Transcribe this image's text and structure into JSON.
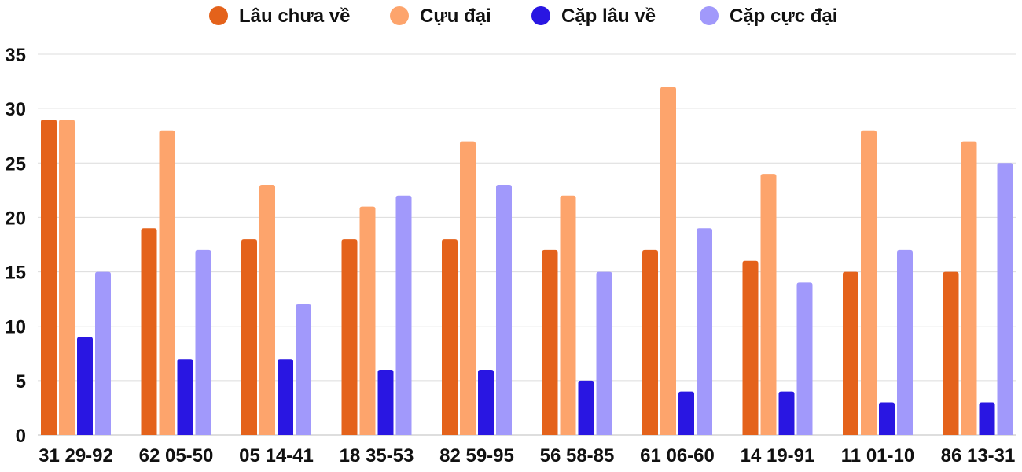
{
  "chart_data": {
    "type": "bar",
    "categories": [
      "31 29-92",
      "62 05-50",
      "05 14-41",
      "18 35-53",
      "82 59-95",
      "56 58-85",
      "61 06-60",
      "14 19-91",
      "11 01-10",
      "86 13-31"
    ],
    "series": [
      {
        "name": "Lâu chưa về",
        "color": "#e4621b",
        "values": [
          29,
          19,
          18,
          18,
          18,
          17,
          17,
          16,
          15,
          15
        ]
      },
      {
        "name": "Cựu đại",
        "color": "#fda46c",
        "values": [
          29,
          28,
          23,
          21,
          27,
          22,
          32,
          24,
          28,
          27
        ]
      },
      {
        "name": "Cặp lâu về",
        "color": "#2916e2",
        "values": [
          9,
          7,
          7,
          6,
          6,
          5,
          4,
          4,
          3,
          3
        ]
      },
      {
        "name": "Cặp cực đại",
        "color": "#a199fb",
        "values": [
          15,
          17,
          12,
          22,
          23,
          15,
          19,
          14,
          17,
          25
        ]
      }
    ],
    "yticks": [
      0,
      5,
      10,
      15,
      20,
      25,
      30,
      35
    ],
    "ylim": [
      0,
      35
    ],
    "grid": true,
    "legend_position": "top-center",
    "title": "",
    "xlabel": "",
    "ylabel": ""
  }
}
